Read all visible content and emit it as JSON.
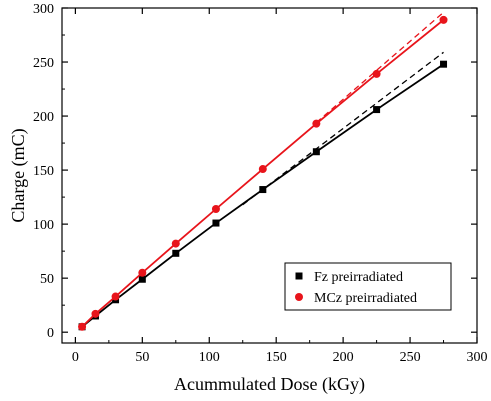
{
  "chart_data": {
    "type": "scatter",
    "xlabel": "Acummulated Dose (kGy)",
    "ylabel": "Charge (mC)",
    "xlim": [
      -10,
      300
    ],
    "ylim": [
      -10,
      300
    ],
    "xticks": [
      0,
      50,
      100,
      150,
      200,
      250,
      300
    ],
    "yticks": [
      0,
      50,
      100,
      150,
      200,
      250,
      300
    ],
    "legend_position": "bottom-right",
    "grid": false,
    "series": [
      {
        "name": "Fz preirradiated",
        "marker": "square",
        "color": "#000000",
        "x": [
          5,
          15,
          30,
          50,
          75,
          105,
          140,
          180,
          225,
          275
        ],
        "y": [
          5,
          15,
          30,
          49,
          73,
          101,
          132,
          167,
          206,
          248
        ],
        "fit_solid": [
          [
            5,
            5
          ],
          [
            275,
            248
          ]
        ],
        "fit_dashed": [
          [
            125,
            118
          ],
          [
            275,
            259
          ]
        ]
      },
      {
        "name": "MCz preirradiated",
        "marker": "circle",
        "color": "#e8141b",
        "x": [
          5,
          15,
          30,
          50,
          75,
          105,
          140,
          180,
          225,
          275
        ],
        "y": [
          5,
          17,
          33,
          55,
          82,
          114,
          151,
          193,
          239,
          289
        ],
        "fit_solid": [
          [
            5,
            5
          ],
          [
            275,
            289
          ]
        ],
        "fit_dashed": [
          [
            180,
            194
          ],
          [
            275,
            296
          ]
        ]
      }
    ]
  }
}
